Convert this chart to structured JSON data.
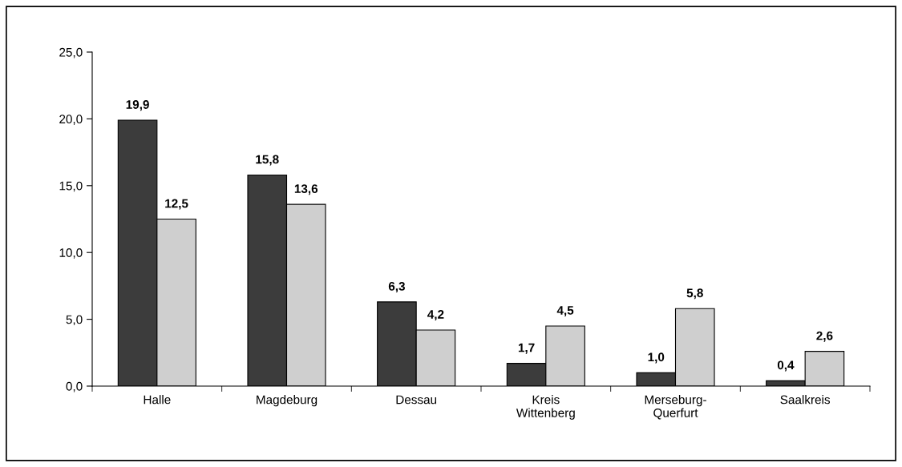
{
  "chart_data": {
    "type": "bar",
    "categories": [
      "Halle",
      "Magdeburg",
      "Dessau",
      "Kreis\nWittenberg",
      "Merseburg-\nQuerfurt",
      "Saalkreis"
    ],
    "series": [
      {
        "color": "#3c3c3c",
        "values": [
          19.9,
          15.8,
          6.3,
          1.7,
          1.0,
          0.4
        ],
        "value_labels": [
          "19,9",
          "15,8",
          "6,3",
          "1,7",
          "1,0",
          "0,4"
        ]
      },
      {
        "color": "#cfcfcf",
        "values": [
          12.5,
          13.6,
          4.2,
          4.5,
          5.8,
          2.6
        ],
        "value_labels": [
          "12,5",
          "13,6",
          "4,2",
          "4,5",
          "5,8",
          "2,6"
        ]
      }
    ],
    "ylim": [
      0,
      25
    ],
    "yticks": [
      {
        "value": 0,
        "label": "0,0"
      },
      {
        "value": 5,
        "label": "5,0"
      },
      {
        "value": 10,
        "label": "10,0"
      },
      {
        "value": 15,
        "label": "15,0"
      },
      {
        "value": 20,
        "label": "20,0"
      },
      {
        "value": 25,
        "label": "25,0"
      }
    ],
    "grid": false,
    "legend": false
  }
}
